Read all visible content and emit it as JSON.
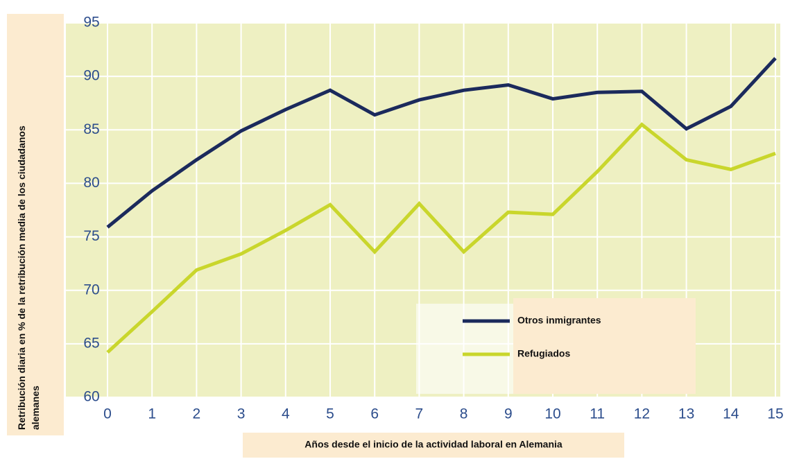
{
  "chart_data": {
    "type": "line",
    "y_label": "Retribución diaria en % de la retribución media de los ciudadanos alemanes",
    "x_label": "Años desde el inicio de la actividad laboral en Alemania",
    "x": [
      0,
      1,
      2,
      3,
      4,
      5,
      6,
      7,
      8,
      9,
      10,
      11,
      12,
      13,
      14,
      15
    ],
    "series": [
      {
        "name": "Otros inmigrantes",
        "color": "#1b2a5c",
        "values": [
          75.9,
          79.3,
          82.2,
          84.9,
          86.9,
          88.7,
          86.4,
          87.8,
          88.7,
          89.2,
          87.9,
          88.5,
          88.6,
          85.1,
          87.2,
          91.7
        ]
      },
      {
        "name": "Refugiados",
        "color": "#c9d62c",
        "values": [
          64.2,
          68.0,
          71.9,
          73.4,
          75.6,
          78.0,
          73.6,
          78.1,
          73.6,
          77.3,
          77.1,
          81.1,
          85.5,
          82.2,
          81.3,
          82.8
        ]
      }
    ],
    "xlim": [
      0,
      15
    ],
    "xticks": [
      0,
      1,
      2,
      3,
      4,
      5,
      6,
      7,
      8,
      9,
      10,
      11,
      12,
      13,
      14,
      15
    ],
    "ylim": [
      60,
      95
    ],
    "yticks": [
      60,
      65,
      70,
      75,
      80,
      85,
      90,
      95
    ],
    "grid": true
  }
}
